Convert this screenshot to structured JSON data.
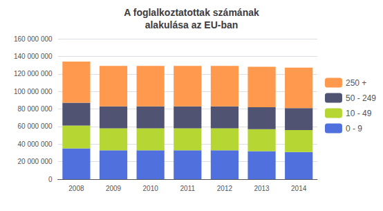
{
  "chart_data": {
    "type": "bar",
    "title": "A foglalkoztatottak számának\nalakulása az EU-ban",
    "categories": [
      "2008",
      "2009",
      "2010",
      "2011",
      "2012",
      "2013",
      "2014"
    ],
    "series": [
      {
        "name": "0 - 9",
        "values": [
          35000000,
          33000000,
          33000000,
          33000000,
          33000000,
          32000000,
          31000000
        ]
      },
      {
        "name": "10 - 49",
        "values": [
          26000000,
          25000000,
          25000000,
          25000000,
          25000000,
          25000000,
          25000000
        ]
      },
      {
        "name": "50 - 249",
        "values": [
          26000000,
          25000000,
          25000000,
          25000000,
          25000000,
          25000000,
          25000000
        ]
      },
      {
        "name": "250 +",
        "values": [
          47000000,
          46000000,
          46000000,
          46000000,
          46000000,
          46000000,
          46000000
        ]
      }
    ],
    "stacked": true,
    "ylim": [
      0,
      160000000
    ],
    "yticks": [
      0,
      {
        "value": 20000000,
        "label": "20 000 000"
      },
      {
        "value": 40000000,
        "label": "40 000 000"
      },
      {
        "value": 60000000,
        "label": "60 000 000"
      },
      {
        "value": 80000000,
        "label": "80 000 000"
      },
      {
        "value": 100000000,
        "label": "100 000 000"
      },
      {
        "value": 120000000,
        "label": "120 000 000"
      },
      {
        "value": 140000000,
        "label": "140 000 000"
      },
      {
        "value": 160000000,
        "label": "160 000 000"
      }
    ],
    "grid": true,
    "legend": "right"
  }
}
